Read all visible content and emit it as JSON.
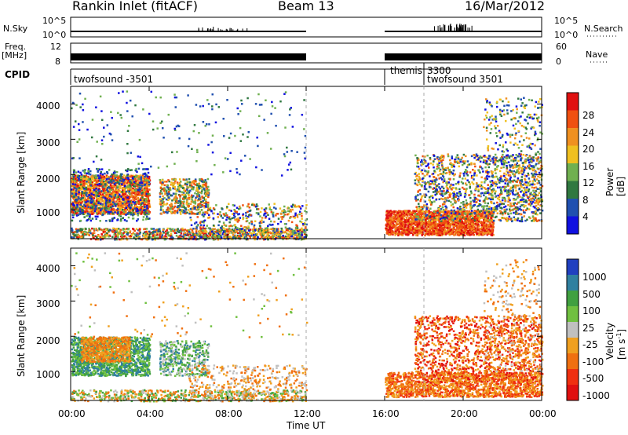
{
  "header": {
    "station": "Rankin Inlet (fitACF)",
    "beam": "Beam 13",
    "date": "16/Mar/2012"
  },
  "aux_panels": {
    "nsky_label": "N.Sky",
    "nsky_ticks": [
      "10^5",
      "10^0"
    ],
    "nsearch_label": "N.Search",
    "nsearch_ticks": [
      "10^5",
      "10^0"
    ],
    "freq_label_line1": "Freq.",
    "freq_label_line2": "[MHz]",
    "freq_ticks": [
      "12",
      "8"
    ],
    "nave_label": "Nave",
    "nave_ticks": [
      "60",
      "0"
    ],
    "cpid_label": "CPID",
    "cpid_segments": [
      {
        "name": "twofsound -3501",
        "start_hr": 0,
        "end_hr": 12
      },
      {
        "name": "themis",
        "start_hr": 16,
        "end_hr": 18
      },
      {
        "name": "3300",
        "start_hr": 18,
        "end_hr": 18.2
      },
      {
        "name": "twofsound 3501",
        "start_hr": 18,
        "end_hr": 24
      }
    ]
  },
  "chart_data": [
    {
      "type": "heatmap",
      "name": "Power",
      "ylabel": "Slant Range [km]",
      "xlim": [
        0,
        24
      ],
      "ylim": [
        180,
        4500
      ],
      "yticks": [
        "1000",
        "2000",
        "3000",
        "4000"
      ],
      "colorbar_label": "Power [dB]",
      "colorbar_ticks": [
        "4",
        "8",
        "12",
        "16",
        "20",
        "24",
        "28"
      ],
      "colors": [
        "#1010e0",
        "#2050b0",
        "#307840",
        "#70b050",
        "#f0c020",
        "#f09020",
        "#f05010",
        "#e01010"
      ]
    },
    {
      "type": "heatmap",
      "name": "Velocity",
      "xlabel": "Time UT",
      "xlim": [
        0,
        24
      ],
      "ylim": [
        180,
        4500
      ],
      "xticks": [
        "00:00",
        "04:00",
        "08:00",
        "12:00",
        "16:00",
        "20:00",
        "00:00"
      ],
      "yticks": [
        "1000",
        "2000",
        "3000",
        "4000"
      ],
      "ylabel": "Slant Range [km]",
      "colorbar_label": "Velocity [m s-1]",
      "colorbar_label_main": "Velocity [m s",
      "colorbar_label_exp": "-1",
      "colorbar_label_end": "]",
      "colorbar_ticks": [
        "1000",
        "500",
        "100",
        "25",
        "-25",
        "-100",
        "-500",
        "-1000"
      ],
      "colors": [
        "#2040c0",
        "#3080a0",
        "#40a040",
        "#70c040",
        "#c0c0c0",
        "#f0a020",
        "#f07010",
        "#f03010",
        "#e01010"
      ]
    }
  ]
}
